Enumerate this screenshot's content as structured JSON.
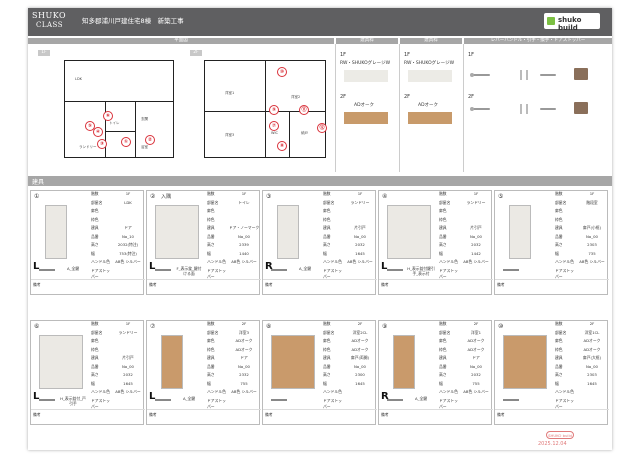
{
  "header": {
    "logo_main": "SHUKO",
    "logo_sub": "CLASS",
    "title": "知多郡浦川戸建住宅8棟　新築工事",
    "brand_name": "shuko build",
    "brand_color": "#7cc043"
  },
  "top_bands": {
    "plan": "平面図",
    "color1": "建具枠",
    "color2": "建具枠",
    "hardware": "レバーハンドル・引手・換手・ドアストッパー"
  },
  "floor_tags": [
    "1F",
    "2F"
  ],
  "plan_markers": [
    "①",
    "②",
    "③",
    "④",
    "⑤",
    "⑥",
    "⑦",
    "⑧",
    "⑨",
    "⑩",
    "⑪",
    "⑫"
  ],
  "room_labels": {
    "f1": [
      "LDK",
      "ランドリー",
      "トイレ",
      "浴室",
      "玄関"
    ],
    "f2": [
      "洋室1",
      "洋室2",
      "洋室3",
      "WIC",
      "納戸"
    ]
  },
  "finish": {
    "col1": {
      "f1_label": "1F",
      "f1_value": "RW・SHUKOグレージW",
      "f2_label": "2F",
      "f2_value": "ADオーク"
    },
    "col2": {
      "f1_label": "1F",
      "f1_value": "RW・SHUKOグレージW",
      "f2_label": "2F",
      "f2_value": "ADオーク"
    },
    "col3": {
      "f1_label": "1F",
      "f2_label": "2F"
    }
  },
  "section_title": "建具",
  "spec_keys": [
    "階数",
    "部屋名",
    "扉色",
    "枠色",
    "建具",
    "品番",
    "高さ",
    "幅",
    "ハンドル色",
    "ドアストッパー"
  ],
  "cards": [
    {
      "no": "①",
      "tag": "",
      "floor": "1F",
      "room": "LDK",
      "door": "",
      "frame": "",
      "type": "ドア",
      "code": "No_10",
      "h": "2032(特注)",
      "w": "753(特注)",
      "hc": "AB色 シルバー",
      "stop": "",
      "swing": "L",
      "hw": "A_全鍵",
      "note": "備考"
    },
    {
      "no": "②",
      "tag": "入隅",
      "floor": "1F",
      "room": "トイレ",
      "door": "",
      "frame": "",
      "type": "ドア・ノーマーク",
      "code": "No_00",
      "h": "2339",
      "w": "1440",
      "hc": "AB色 シルバー",
      "stop": "",
      "swing": "L",
      "hw": "F_表示錠_鍵付ける面",
      "note": "備考"
    },
    {
      "no": "③",
      "tag": "",
      "floor": "1F",
      "room": "ランドリー",
      "door": "",
      "frame": "",
      "type": "片引戸",
      "code": "No_00",
      "h": "2032",
      "w": "1645",
      "hc": "AB色 シルバー",
      "stop": "",
      "swing": "R",
      "hw": "A_全鍵",
      "note": "備考"
    },
    {
      "no": "④",
      "tag": "",
      "floor": "1F",
      "room": "ランドリー",
      "door": "",
      "frame": "",
      "type": "片引戸",
      "code": "No_00",
      "h": "2032",
      "w": "1442",
      "hc": "AB色 シルバー",
      "stop": "",
      "swing": "L",
      "hw": "H_表示錠付鍵引手_表示付",
      "note": "備考"
    },
    {
      "no": "⑤",
      "tag": "",
      "floor": "1F",
      "room": "階段室",
      "door": "",
      "frame": "",
      "type": "扉戸(小框)",
      "code": "No_00",
      "h": "2303",
      "w": "735",
      "hc": "AB色 シルバー",
      "stop": "",
      "swing": "",
      "hw": "",
      "note": "備考"
    },
    {
      "no": "⑥",
      "tag": "",
      "floor": "1F",
      "room": "ランドリー",
      "door": "",
      "frame": "",
      "type": "片引戸",
      "code": "No_00",
      "h": "2032",
      "w": "1645",
      "hc": "AB色 シルバー",
      "stop": "",
      "swing": "L",
      "hw": "H_表示錠付_戸引手",
      "note": "備考"
    },
    {
      "no": "⑦",
      "tag": "",
      "floor": "2F",
      "room": "洋室3",
      "door": "ADオーク",
      "frame": "ADオーク",
      "type": "ドア",
      "code": "No_00",
      "h": "2332",
      "w": "755",
      "hc": "AB色 シルバー",
      "stop": "",
      "swing": "L",
      "hw": "A_全鍵",
      "note": "備考"
    },
    {
      "no": "⑧",
      "tag": "",
      "floor": "2F",
      "room": "洋室2CL",
      "door": "ADオーク",
      "frame": "ADオーク",
      "type": "扉戸(両開)",
      "code": "No_00",
      "h": "2300",
      "w": "1645",
      "hc": "",
      "stop": "",
      "swing": "",
      "hw": "",
      "note": "備考"
    },
    {
      "no": "⑨",
      "tag": "",
      "floor": "2F",
      "room": "洋室1",
      "door": "ADオーク",
      "frame": "ADオーク",
      "type": "ドア",
      "code": "No_00",
      "h": "2032",
      "w": "755",
      "hc": "AB色 シルバー",
      "stop": "",
      "swing": "R",
      "hw": "A_全鍵",
      "note": "備考"
    },
    {
      "no": "⑩",
      "tag": "",
      "floor": "2F",
      "room": "洋室1CL",
      "door": "ADオーク",
      "frame": "ADオーク",
      "type": "扉戸(大框)",
      "code": "No_00",
      "h": "2303",
      "w": "1645",
      "hc": "",
      "stop": "",
      "swing": "",
      "hw": "",
      "note": "備考"
    }
  ],
  "footer": {
    "stamp": "SHUKO build",
    "date": "2025.12.04",
    "stamp_color": "#e07a7a"
  }
}
